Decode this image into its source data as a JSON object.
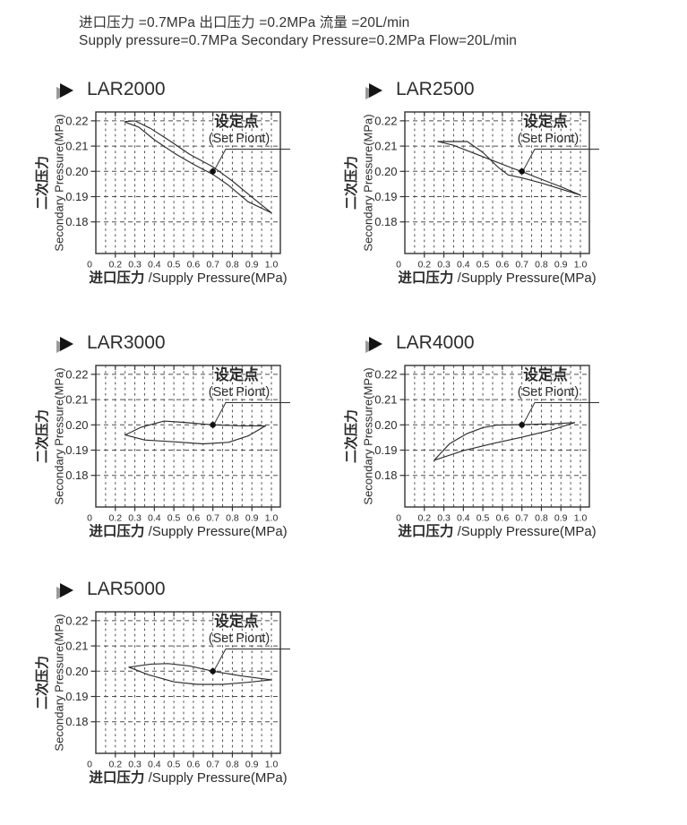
{
  "header": {
    "line_cn": "进口压力 =0.7MPa 出口压力 =0.2MPa 流量 =20L/min",
    "line_en": "Supply pressure=0.7MPa Secondary Pressure=0.2MPa Flow=20L/min"
  },
  "axes": {
    "x_label_cn": "进口压力",
    "x_label_en": "/Supply Pressure(MPa)",
    "y_label_cn": "二次压力",
    "y_label_en": "Secondary Pressure(MPa)",
    "x_ticks": [
      "0",
      "0.2",
      "0.3",
      "0.4",
      "0.5",
      "0.6",
      "0.7",
      "0.8",
      "0.9",
      "1.0"
    ],
    "y_ticks": [
      "0.22",
      "0.21",
      "0.20",
      "0.19",
      "0.18"
    ],
    "y_range": [
      0.1675,
      0.2235
    ],
    "grid": "dashed"
  },
  "annotation": {
    "label_cn": "设定点",
    "label_en": "(Set Piont)"
  },
  "colors": {
    "line": "#2d2d2d",
    "grid": "#4d4d4d",
    "frame": "#333333",
    "text": "#2b2b2b",
    "bullet": "#141414",
    "bullet_shadow": "#9a9a9a"
  },
  "chart_data": [
    {
      "model": "LAR2000",
      "type": "line",
      "xlabel": "进口压力 /Supply Pressure(MPa)",
      "ylabel": "二次压力 Secondary Pressure(MPa)",
      "set_point": {
        "x": 0.7,
        "y": 0.2
      },
      "series": [
        {
          "name": "branch-upper",
          "points": [
            [
              0.25,
              0.2197
            ],
            [
              0.3,
              0.22
            ],
            [
              0.38,
              0.217
            ],
            [
              0.48,
              0.212
            ],
            [
              0.58,
              0.2068
            ],
            [
              0.7,
              0.2018
            ],
            [
              0.8,
              0.1962
            ],
            [
              0.9,
              0.1898
            ],
            [
              1.0,
              0.1836
            ]
          ]
        },
        {
          "name": "branch-lower",
          "points": [
            [
              0.25,
              0.2195
            ],
            [
              0.32,
              0.2175
            ],
            [
              0.4,
              0.2125
            ],
            [
              0.5,
              0.2073
            ],
            [
              0.6,
              0.2028
            ],
            [
              0.7,
              0.1988
            ],
            [
              0.78,
              0.1945
            ],
            [
              0.84,
              0.1906
            ],
            [
              0.88,
              0.188
            ],
            [
              1.0,
              0.1836
            ]
          ]
        }
      ]
    },
    {
      "model": "LAR2500",
      "type": "line",
      "xlabel": "进口压力 /Supply Pressure(MPa)",
      "ylabel": "二次压力 Secondary Pressure(MPa)",
      "set_point": {
        "x": 0.7,
        "y": 0.2
      },
      "series": [
        {
          "name": "branch-upper",
          "points": [
            [
              0.27,
              0.2118
            ],
            [
              0.42,
              0.2118
            ],
            [
              0.5,
              0.2075
            ],
            [
              0.58,
              0.2015
            ],
            [
              0.63,
              0.1986
            ],
            [
              0.7,
              0.1974
            ],
            [
              0.8,
              0.1954
            ],
            [
              0.9,
              0.193
            ],
            [
              1.0,
              0.1906
            ]
          ]
        },
        {
          "name": "branch-lower",
          "points": [
            [
              0.27,
              0.2118
            ],
            [
              0.35,
              0.2103
            ],
            [
              0.45,
              0.2073
            ],
            [
              0.55,
              0.2043
            ],
            [
              0.65,
              0.2013
            ],
            [
              0.7,
              0.1999
            ],
            [
              0.8,
              0.1969
            ],
            [
              0.9,
              0.1939
            ],
            [
              1.0,
              0.1906
            ]
          ]
        }
      ]
    },
    {
      "model": "LAR3000",
      "type": "line",
      "xlabel": "进口压力 /Supply Pressure(MPa)",
      "ylabel": "二次压力 Secondary Pressure(MPa)",
      "set_point": {
        "x": 0.7,
        "y": 0.2
      },
      "series": [
        {
          "name": "branch-upper",
          "points": [
            [
              0.25,
              0.196
            ],
            [
              0.33,
              0.199
            ],
            [
              0.45,
              0.2015
            ],
            [
              0.55,
              0.201
            ],
            [
              0.7,
              0.2
            ],
            [
              0.85,
              0.1996
            ],
            [
              0.97,
              0.1996
            ]
          ]
        },
        {
          "name": "branch-lower",
          "points": [
            [
              0.25,
              0.196
            ],
            [
              0.35,
              0.194
            ],
            [
              0.5,
              0.1933
            ],
            [
              0.65,
              0.1925
            ],
            [
              0.78,
              0.1931
            ],
            [
              0.88,
              0.1956
            ],
            [
              0.97,
              0.1996
            ]
          ]
        }
      ]
    },
    {
      "model": "LAR4000",
      "type": "line",
      "xlabel": "进口压力 /Supply Pressure(MPa)",
      "ylabel": "二次压力 Secondary Pressure(MPa)",
      "set_point": {
        "x": 0.7,
        "y": 0.2
      },
      "series": [
        {
          "name": "branch-upper",
          "points": [
            [
              0.25,
              0.186
            ],
            [
              0.33,
              0.1926
            ],
            [
              0.42,
              0.1966
            ],
            [
              0.5,
              0.1989
            ],
            [
              0.57,
              0.1999
            ],
            [
              0.7,
              0.2001
            ],
            [
              0.85,
              0.2004
            ],
            [
              0.97,
              0.2009
            ]
          ]
        },
        {
          "name": "branch-lower",
          "points": [
            [
              0.25,
              0.186
            ],
            [
              0.4,
              0.1898
            ],
            [
              0.55,
              0.1926
            ],
            [
              0.7,
              0.1951
            ],
            [
              0.85,
              0.1979
            ],
            [
              0.97,
              0.2009
            ]
          ]
        }
      ]
    },
    {
      "model": "LAR5000",
      "type": "line",
      "xlabel": "进口压力 /Supply Pressure(MPa)",
      "ylabel": "二次压力 Secondary Pressure(MPa)",
      "set_point": {
        "x": 0.7,
        "y": 0.2
      },
      "series": [
        {
          "name": "branch-upper",
          "points": [
            [
              0.27,
              0.2016
            ],
            [
              0.38,
              0.2028
            ],
            [
              0.47,
              0.203
            ],
            [
              0.58,
              0.2021
            ],
            [
              0.7,
              0.2
            ],
            [
              0.85,
              0.1981
            ],
            [
              1.0,
              0.1966
            ]
          ]
        },
        {
          "name": "branch-lower",
          "points": [
            [
              0.27,
              0.2016
            ],
            [
              0.37,
              0.1986
            ],
            [
              0.5,
              0.1958
            ],
            [
              0.62,
              0.1948
            ],
            [
              0.75,
              0.1948
            ],
            [
              0.88,
              0.1956
            ],
            [
              1.0,
              0.1966
            ]
          ]
        }
      ]
    }
  ]
}
